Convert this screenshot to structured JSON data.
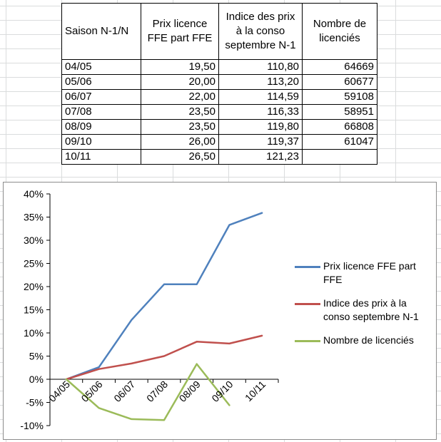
{
  "table": {
    "headers": [
      "Saison N-1/N",
      "Prix licence FFE part FFE",
      "Indice des prix à la conso septembre N-1",
      "Nombre de licenciés"
    ],
    "rows": [
      [
        "04/05",
        "19,50",
        "110,80",
        "64669"
      ],
      [
        "05/06",
        "20,00",
        "113,20",
        "60677"
      ],
      [
        "06/07",
        "22,00",
        "114,59",
        "59108"
      ],
      [
        "07/08",
        "23,50",
        "116,33",
        "58951"
      ],
      [
        "08/09",
        "23,50",
        "119,80",
        "66808"
      ],
      [
        "09/10",
        "26,00",
        "119,37",
        "61047"
      ],
      [
        "10/11",
        "26,50",
        "121,23",
        ""
      ]
    ]
  },
  "chart_data": {
    "type": "line",
    "categories": [
      "04/05",
      "05/06",
      "06/07",
      "07/08",
      "08/09",
      "09/10",
      "10/11"
    ],
    "ylim": [
      -10,
      40
    ],
    "yticks": [
      "40%",
      "35%",
      "30%",
      "25%",
      "20%",
      "15%",
      "10%",
      "5%",
      "0%",
      "-5%",
      "-10%"
    ],
    "ytick_values": [
      40,
      35,
      30,
      25,
      20,
      15,
      10,
      5,
      0,
      -5,
      -10
    ],
    "grid": false,
    "legend": "right",
    "series": [
      {
        "name": "Prix licence FFE part FFE",
        "color": "#4f81bd",
        "values": [
          0,
          2.6,
          12.8,
          20.5,
          20.5,
          33.3,
          35.9
        ]
      },
      {
        "name": "Indice des prix à la conso septembre N-1",
        "color": "#c0504d",
        "values": [
          0,
          2.2,
          3.4,
          5.0,
          8.1,
          7.7,
          9.4
        ]
      },
      {
        "name": "Nombre de licenciés",
        "color": "#9bbb59",
        "values": [
          0,
          -6.2,
          -8.6,
          -8.8,
          3.3,
          -5.6,
          null
        ]
      }
    ]
  }
}
